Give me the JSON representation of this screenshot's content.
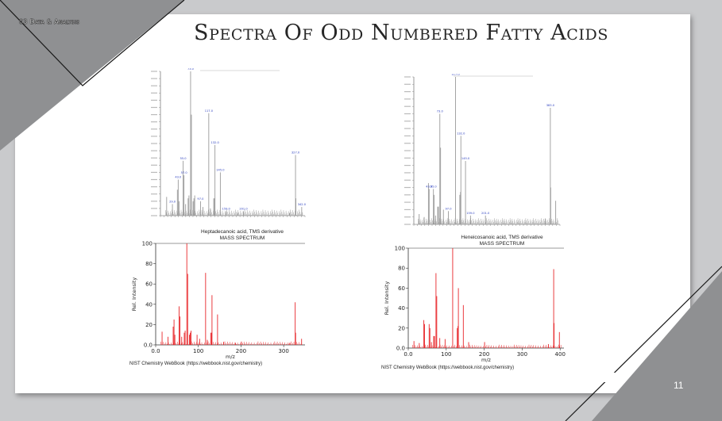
{
  "section_tag": "03 Data & Analysis",
  "title": "Spectra Of Odd Numbered Fatty Acids",
  "page_number": "11",
  "colors": {
    "background": "#c9cacc",
    "slide": "#ffffff",
    "decor_gray": "#8f9092",
    "spectrum_red": "#e8262a",
    "spectrum_gray": "#9a9a9a",
    "spectrum_label": "#2b3fbf"
  },
  "chart_data": [
    {
      "type": "bar",
      "compound": "Heptadecanoic acid, TMS derivative",
      "subtitle": "MASS SPECTRUM",
      "xlabel": "m/z",
      "ylabel": "Rel. Intensity",
      "xlim": [
        0,
        350
      ],
      "ylim": [
        0,
        100
      ],
      "xticks": [
        "0.0",
        "100",
        "200",
        "300"
      ],
      "yticks": [
        "0.0",
        "20",
        "40",
        "60",
        "80",
        "100"
      ],
      "source": "NIST Chemistry WebBook (https://webbook.nist.gov/chemistry)",
      "peaks": [
        [
          15,
          13
        ],
        [
          29,
          8
        ],
        [
          41,
          18
        ],
        [
          43,
          25
        ],
        [
          45,
          10
        ],
        [
          55,
          38
        ],
        [
          57,
          28
        ],
        [
          61,
          8
        ],
        [
          67,
          12
        ],
        [
          69,
          14
        ],
        [
          73,
          100
        ],
        [
          75,
          70
        ],
        [
          79,
          10
        ],
        [
          81,
          12
        ],
        [
          83,
          14
        ],
        [
          97,
          10
        ],
        [
          103,
          6
        ],
        [
          117,
          71
        ],
        [
          121,
          5
        ],
        [
          129,
          12
        ],
        [
          131,
          12
        ],
        [
          132,
          49
        ],
        [
          145,
          30
        ],
        [
          159,
          3
        ],
        [
          187,
          2
        ],
        [
          201,
          3
        ],
        [
          313,
          2
        ],
        [
          327,
          42
        ],
        [
          328,
          12
        ],
        [
          342,
          6
        ]
      ]
    },
    {
      "type": "bar",
      "compound": "Heneicosanoic acid, TMS derivative",
      "subtitle": "MASS SPECTRUM",
      "xlabel": "m/z",
      "ylabel": "Rel. Intensity",
      "xlim": [
        0,
        410
      ],
      "ylim": [
        0,
        100
      ],
      "xticks": [
        "0.0",
        "100",
        "200",
        "300",
        "400"
      ],
      "yticks": [
        "0.0",
        "20",
        "40",
        "60",
        "80",
        "100"
      ],
      "source": "NIST Chemistry WebBook (https://webbook.nist.gov/chemistry)",
      "peaks": [
        [
          15,
          7
        ],
        [
          29,
          5
        ],
        [
          41,
          28
        ],
        [
          43,
          24
        ],
        [
          55,
          24
        ],
        [
          57,
          20
        ],
        [
          61,
          6
        ],
        [
          67,
          12
        ],
        [
          69,
          12
        ],
        [
          73,
          75
        ],
        [
          75,
          52
        ],
        [
          83,
          10
        ],
        [
          97,
          9
        ],
        [
          117,
          100
        ],
        [
          129,
          20
        ],
        [
          131,
          22
        ],
        [
          132,
          60
        ],
        [
          145,
          43
        ],
        [
          159,
          6
        ],
        [
          201,
          6
        ],
        [
          369,
          4
        ],
        [
          383,
          79
        ],
        [
          384,
          25
        ],
        [
          398,
          16
        ]
      ]
    }
  ],
  "thumbnails": [
    {
      "labels": [
        "73.0",
        "43.0",
        "55.0",
        "117.0",
        "57.0",
        "132.0",
        "29.0",
        "97.0",
        "145.0",
        "327.0",
        "342.0",
        "159.0",
        "201.0"
      ]
    },
    {
      "labels": [
        "73.0",
        "117.0",
        "43.0",
        "132.0",
        "55.0",
        "145.0",
        "383.0",
        "97.0",
        "201.0",
        "159.0"
      ]
    }
  ]
}
